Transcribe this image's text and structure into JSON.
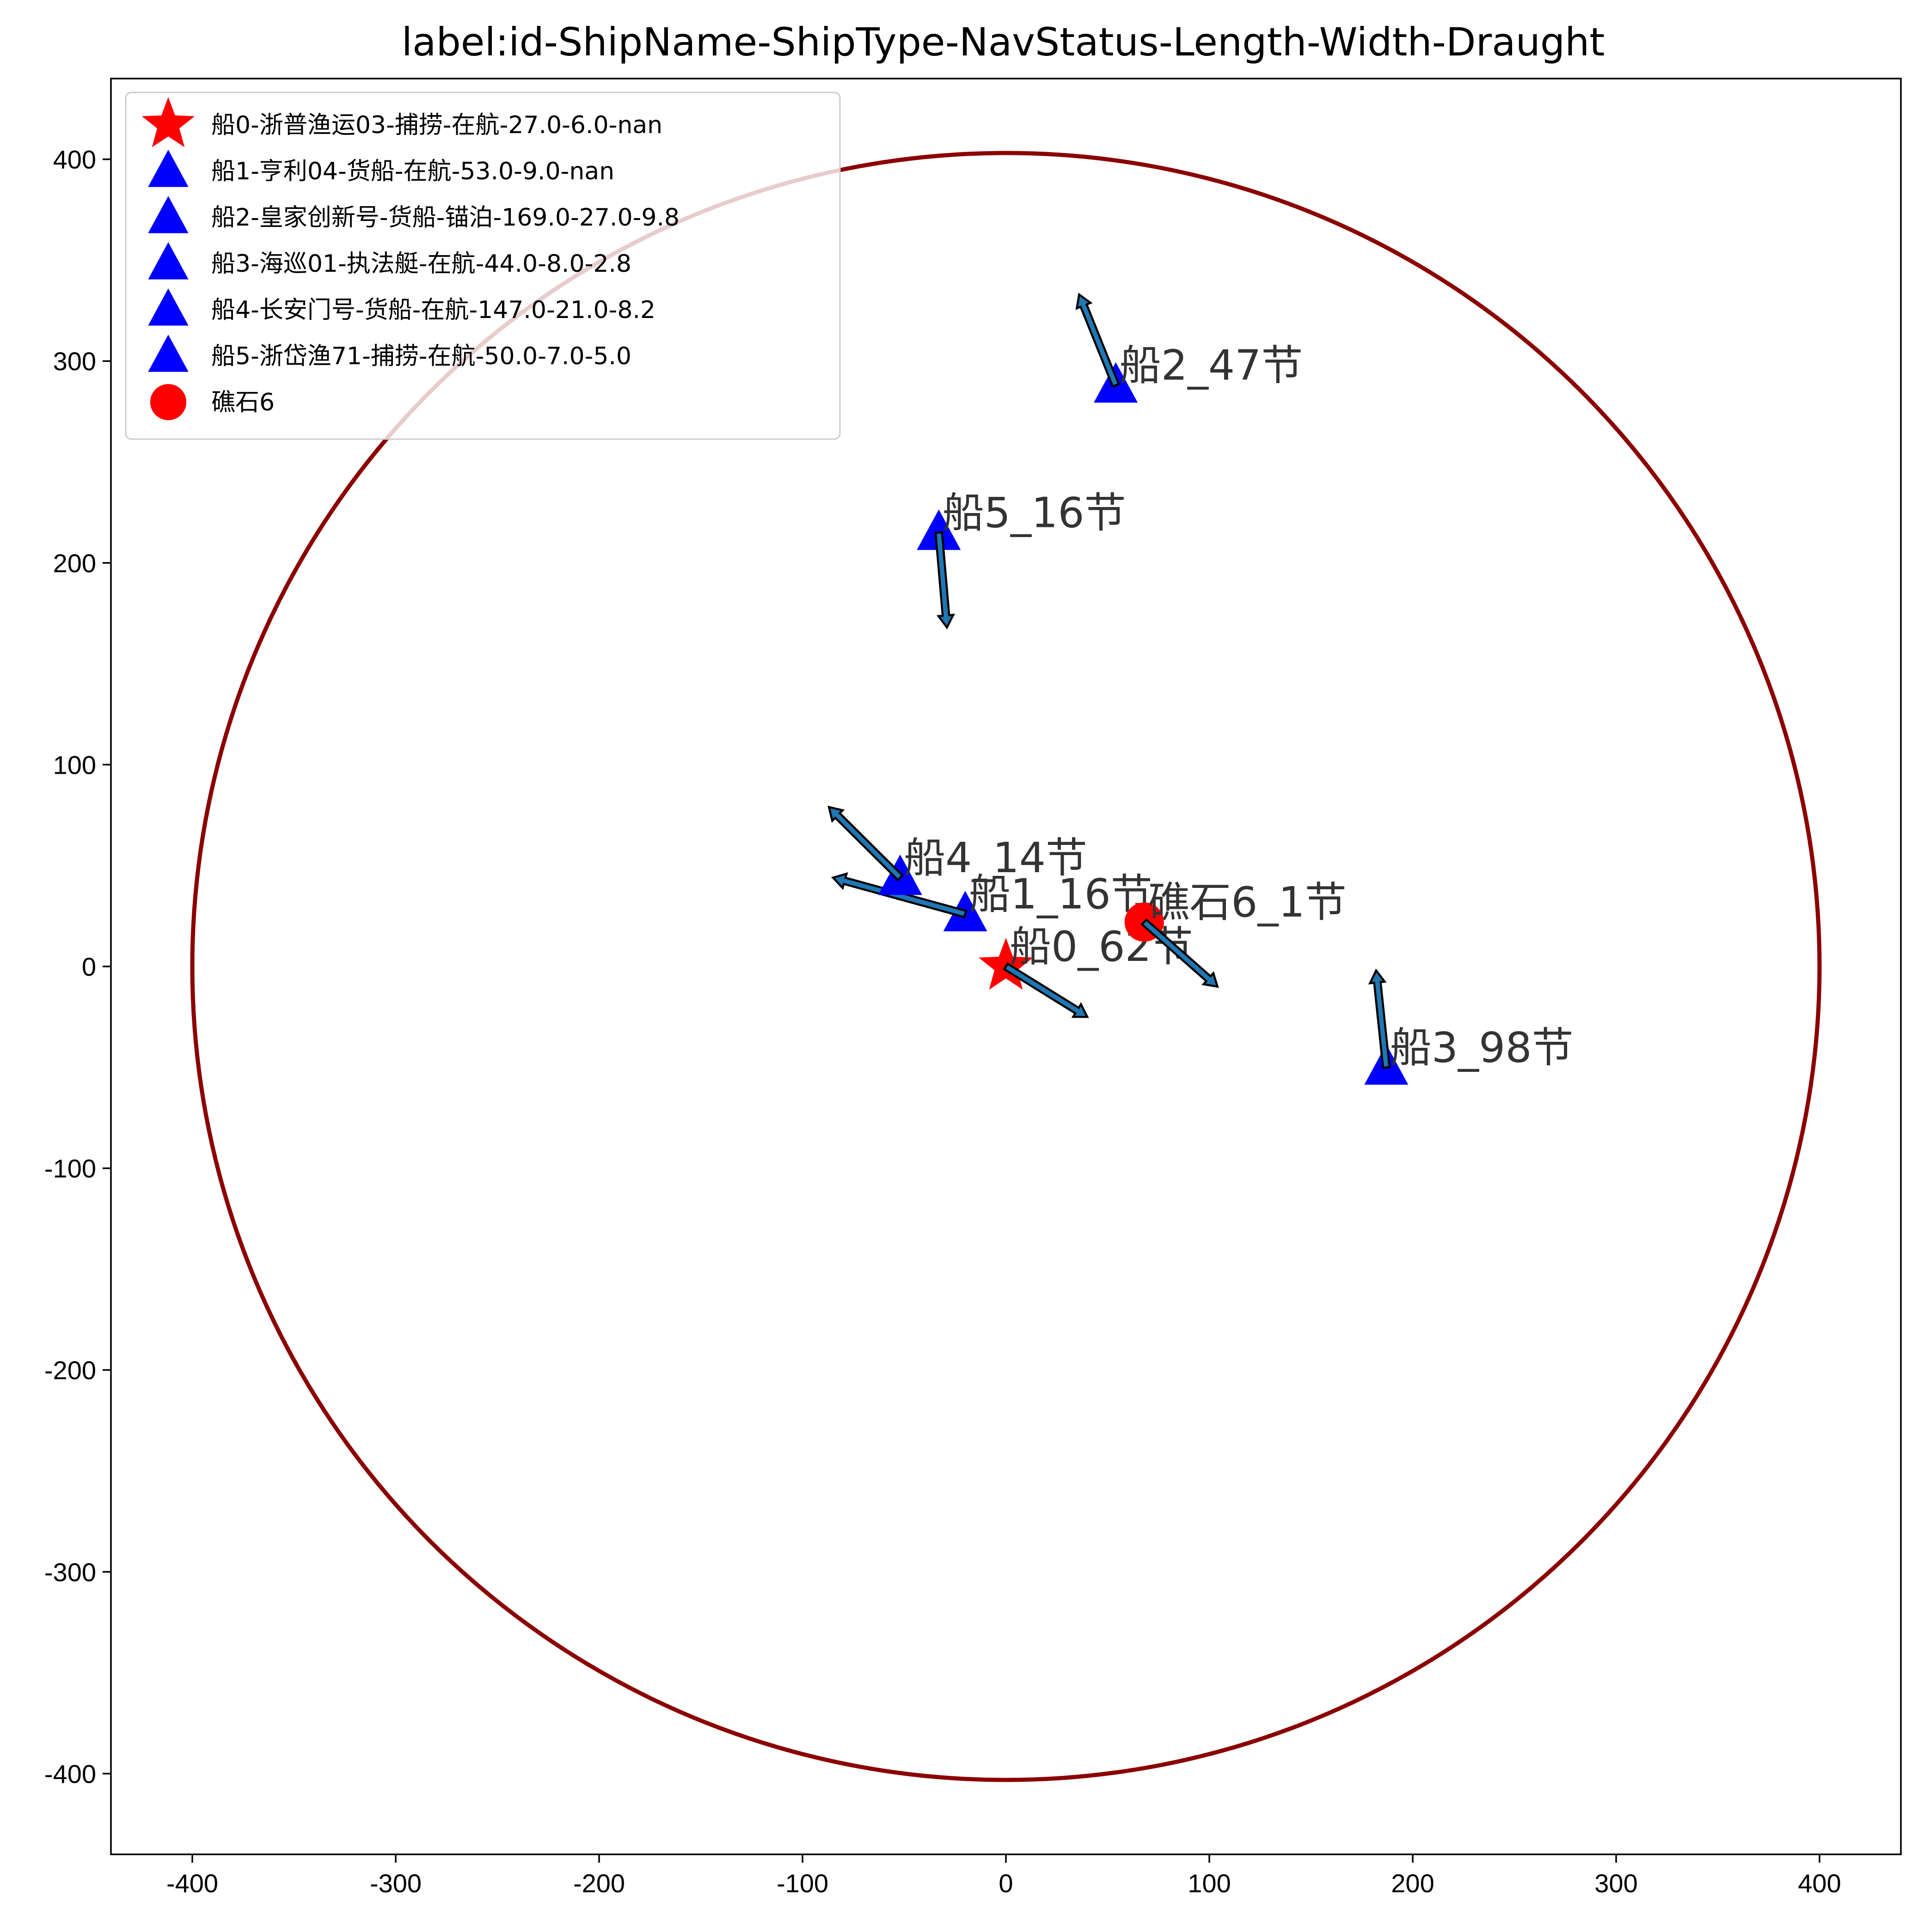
{
  "chart_data": {
    "type": "scatter",
    "title": "label:id-ShipName-ShipType-NavStatus-Length-Width-Draught",
    "xlabel": "",
    "ylabel": "",
    "xlim": [
      -440,
      440
    ],
    "ylim": [
      -440,
      440
    ],
    "xticks": [
      -400,
      -300,
      -200,
      -100,
      0,
      100,
      200,
      300,
      400
    ],
    "yticks": [
      -400,
      -300,
      -200,
      -100,
      0,
      100,
      200,
      300,
      400
    ],
    "grid": false,
    "legend_position": "upper-left",
    "circle": {
      "cx": 0,
      "cy": 0,
      "r": 400,
      "color": "#8b0000"
    },
    "colors": {
      "own_ship": "#ff0000",
      "ships": "#0000ff",
      "reef": "#ff0000",
      "arrow_fill": "#1f77b4",
      "arrow_edge": "#000000",
      "annotation": "#333333"
    },
    "points": [
      {
        "marker": "star",
        "color": "#ff0000",
        "x": 0,
        "y": 0,
        "dx": 40,
        "dy": -25,
        "legend": "船0-浙普渔运03-捕捞-在航-27.0-6.0-nan",
        "annotation": "船0_62节"
      },
      {
        "marker": "triangle",
        "color": "#0000ff",
        "x": -20,
        "y": 26,
        "dx": -65,
        "dy": 18,
        "legend": "船1-亨利04-货船-在航-53.0-9.0-nan",
        "annotation": "船1_16节"
      },
      {
        "marker": "triangle",
        "color": "#0000ff",
        "x": 54,
        "y": 288,
        "dx": -18,
        "dy": 45,
        "legend": "船2-皇家创新号-货船-锚泊-169.0-27.0-9.8",
        "annotation": "船2_47节"
      },
      {
        "marker": "triangle",
        "color": "#0000ff",
        "x": 187,
        "y": -50,
        "dx": -5,
        "dy": 48,
        "legend": "船3-海巡01-执法艇-在航-44.0-8.0-2.8",
        "annotation": "船3_98节"
      },
      {
        "marker": "triangle",
        "color": "#0000ff",
        "x": -52,
        "y": 44,
        "dx": -35,
        "dy": 35,
        "legend": "船4-长安门号-货船-在航-147.0-21.0-8.2",
        "annotation": "船4_14节"
      },
      {
        "marker": "triangle",
        "color": "#0000ff",
        "x": -33,
        "y": 215,
        "dx": 4,
        "dy": -47,
        "legend": "船5-浙岱渔71-捕捞-在航-50.0-7.0-5.0",
        "annotation": "船5_16节"
      },
      {
        "marker": "circle",
        "color": "#ff0000",
        "x": 68,
        "y": 22,
        "dx": 36,
        "dy": -32,
        "legend": "礁石6",
        "annotation": "礁石6_1节"
      }
    ]
  }
}
